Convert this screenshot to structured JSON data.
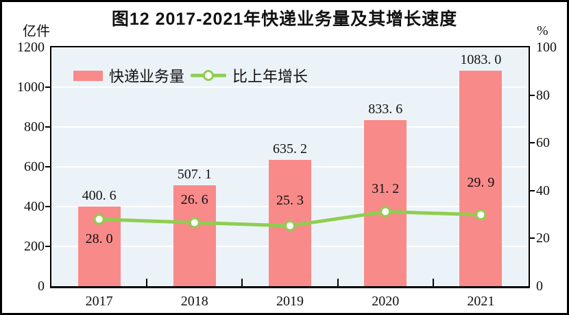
{
  "title": "图12  2017-2021年快递业务量及其增长速度",
  "left_axis": {
    "unit": "亿件",
    "ticks": [
      "1200",
      "1000",
      "800",
      "600",
      "400",
      "200",
      "0"
    ]
  },
  "right_axis": {
    "unit": "%",
    "ticks": [
      "100",
      "80",
      "60",
      "40",
      "20",
      "0"
    ]
  },
  "legend": {
    "bar_label": "快递业务量",
    "line_label": "比上年增长"
  },
  "colors": {
    "bar": "#f98a8a",
    "line": "#8fce50",
    "marker_fill": "#ffffff",
    "plot_background": "#ecf3f8",
    "gridline": "#ffffff",
    "axis": "#000000",
    "text": "#111111"
  },
  "chart_data": {
    "type": "bar",
    "subtype": "bar+line combo, dual axis",
    "title": "图12  2017-2021年快递业务量及其增长速度",
    "categories": [
      "2017",
      "2018",
      "2019",
      "2020",
      "2021"
    ],
    "series": [
      {
        "name": "快递业务量",
        "type": "bar",
        "axis": "left",
        "unit": "亿件",
        "values": [
          400.6,
          507.1,
          635.2,
          833.6,
          1083.0
        ],
        "labels": [
          "400. 6",
          "507. 1",
          "635. 2",
          "833. 6",
          "1083. 0"
        ]
      },
      {
        "name": "比上年增长",
        "type": "line",
        "axis": "right",
        "unit": "%",
        "values": [
          28.0,
          26.6,
          25.3,
          31.2,
          29.9
        ],
        "labels": [
          "28. 0",
          "26. 6",
          "25. 3",
          "31. 2",
          "29. 9"
        ]
      }
    ],
    "left_ylim": [
      0,
      1200
    ],
    "left_tick_step": 200,
    "right_ylim": [
      0,
      100
    ],
    "right_tick_step": 20,
    "grid": true,
    "legend_position": "top-left-inside",
    "growth_label_dy": [
      28,
      -33,
      -37,
      -33,
      -47
    ]
  }
}
